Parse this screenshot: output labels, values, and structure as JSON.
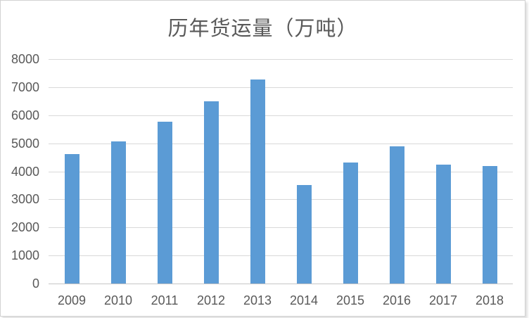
{
  "chart_data": {
    "type": "bar",
    "title": "历年货运量（万吨）",
    "categories": [
      "2009",
      "2010",
      "2011",
      "2012",
      "2013",
      "2014",
      "2015",
      "2016",
      "2017",
      "2018"
    ],
    "values": [
      4610,
      5070,
      5770,
      6500,
      7270,
      3520,
      4310,
      4900,
      4230,
      4200
    ],
    "xlabel": "",
    "ylabel": "",
    "ylim": [
      0,
      8000
    ],
    "yticks": [
      0,
      1000,
      2000,
      3000,
      4000,
      5000,
      6000,
      7000,
      8000
    ],
    "grid": "horizontal",
    "legend": "none",
    "style": {
      "bar_color": "#5B9BD5",
      "gridline_color": "#D9D9D9",
      "axis_line_color": "#C6C6C6",
      "text_color": "#595959",
      "title_color": "#595959",
      "background": "#FFFFFF"
    }
  }
}
